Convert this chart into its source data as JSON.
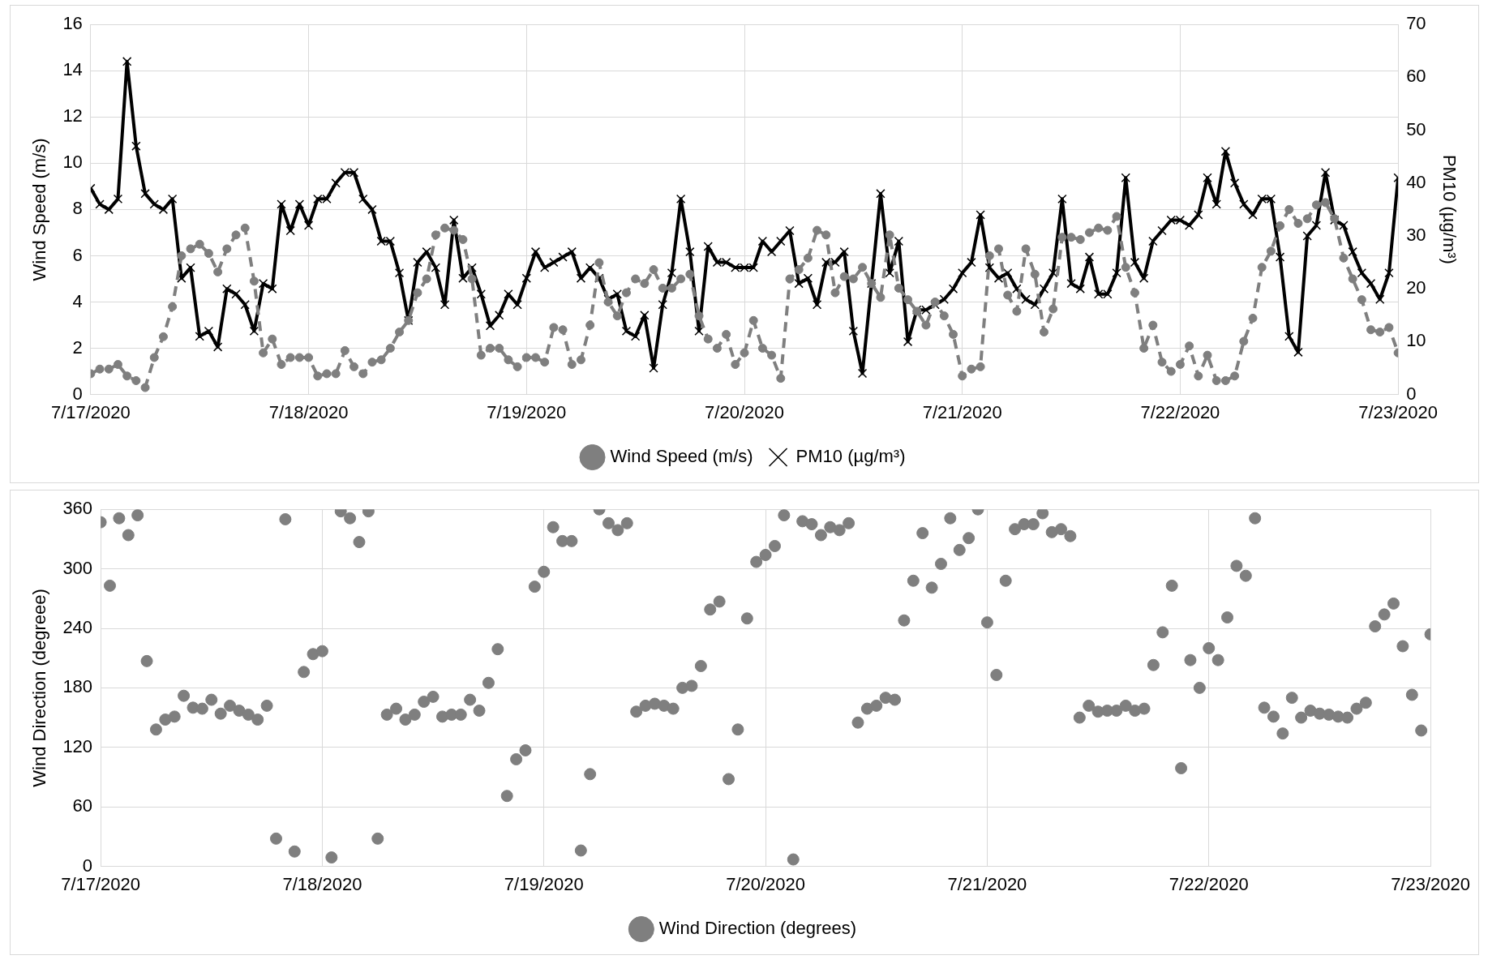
{
  "chart_data": [
    {
      "type": "line",
      "x": [
        "2020-07-17T00:00",
        "2020-07-17T01:00",
        "2020-07-17T02:00",
        "2020-07-17T03:00",
        "2020-07-17T04:00",
        "2020-07-17T05:00",
        "2020-07-17T06:00",
        "2020-07-17T07:00",
        "2020-07-17T08:00",
        "2020-07-17T09:00",
        "2020-07-17T10:00",
        "2020-07-17T11:00",
        "2020-07-17T12:00",
        "2020-07-17T13:00",
        "2020-07-17T14:00",
        "2020-07-17T15:00",
        "2020-07-17T16:00",
        "2020-07-17T17:00",
        "2020-07-17T18:00",
        "2020-07-17T19:00",
        "2020-07-17T20:00",
        "2020-07-17T21:00",
        "2020-07-17T22:00",
        "2020-07-17T23:00",
        "2020-07-18T00:00",
        "2020-07-18T01:00",
        "2020-07-18T02:00",
        "2020-07-18T03:00",
        "2020-07-18T04:00",
        "2020-07-18T05:00",
        "2020-07-18T06:00",
        "2020-07-18T07:00",
        "2020-07-18T08:00",
        "2020-07-18T09:00",
        "2020-07-18T10:00",
        "2020-07-18T11:00",
        "2020-07-18T12:00",
        "2020-07-18T13:00",
        "2020-07-18T14:00",
        "2020-07-18T15:00",
        "2020-07-18T16:00",
        "2020-07-18T17:00",
        "2020-07-18T18:00",
        "2020-07-18T19:00",
        "2020-07-18T20:00",
        "2020-07-18T21:00",
        "2020-07-18T22:00",
        "2020-07-18T23:00",
        "2020-07-19T00:00",
        "2020-07-19T01:00",
        "2020-07-19T02:00",
        "2020-07-19T03:00",
        "2020-07-19T04:00",
        "2020-07-19T05:00",
        "2020-07-19T06:00",
        "2020-07-19T07:00",
        "2020-07-19T08:00",
        "2020-07-19T09:00",
        "2020-07-19T10:00",
        "2020-07-19T11:00",
        "2020-07-19T12:00",
        "2020-07-19T13:00",
        "2020-07-19T14:00",
        "2020-07-19T15:00",
        "2020-07-19T16:00",
        "2020-07-19T17:00",
        "2020-07-19T18:00",
        "2020-07-19T19:00",
        "2020-07-19T20:00",
        "2020-07-19T21:00",
        "2020-07-19T22:00",
        "2020-07-19T23:00",
        "2020-07-20T00:00",
        "2020-07-20T01:00",
        "2020-07-20T02:00",
        "2020-07-20T03:00",
        "2020-07-20T04:00",
        "2020-07-20T05:00",
        "2020-07-20T06:00",
        "2020-07-20T07:00",
        "2020-07-20T08:00",
        "2020-07-20T09:00",
        "2020-07-20T10:00",
        "2020-07-20T11:00",
        "2020-07-20T12:00",
        "2020-07-20T13:00",
        "2020-07-20T14:00",
        "2020-07-20T15:00",
        "2020-07-20T16:00",
        "2020-07-20T17:00",
        "2020-07-20T18:00",
        "2020-07-20T19:00",
        "2020-07-20T20:00",
        "2020-07-20T21:00",
        "2020-07-20T22:00",
        "2020-07-20T23:00",
        "2020-07-21T00:00",
        "2020-07-21T01:00",
        "2020-07-21T02:00",
        "2020-07-21T03:00",
        "2020-07-21T04:00",
        "2020-07-21T05:00",
        "2020-07-21T06:00",
        "2020-07-21T07:00",
        "2020-07-21T08:00",
        "2020-07-21T09:00",
        "2020-07-21T10:00",
        "2020-07-21T11:00",
        "2020-07-21T12:00",
        "2020-07-21T13:00",
        "2020-07-21T14:00",
        "2020-07-21T15:00",
        "2020-07-21T16:00",
        "2020-07-21T17:00",
        "2020-07-21T18:00",
        "2020-07-21T19:00",
        "2020-07-21T20:00",
        "2020-07-21T21:00",
        "2020-07-21T22:00",
        "2020-07-21T23:00",
        "2020-07-22T00:00",
        "2020-07-22T01:00",
        "2020-07-22T02:00",
        "2020-07-22T03:00",
        "2020-07-22T04:00",
        "2020-07-22T05:00",
        "2020-07-22T06:00",
        "2020-07-22T07:00",
        "2020-07-22T08:00",
        "2020-07-22T09:00",
        "2020-07-22T10:00",
        "2020-07-22T11:00",
        "2020-07-22T12:00",
        "2020-07-22T13:00",
        "2020-07-22T14:00",
        "2020-07-22T15:00",
        "2020-07-22T16:00",
        "2020-07-22T17:00",
        "2020-07-22T18:00",
        "2020-07-22T19:00",
        "2020-07-22T20:00",
        "2020-07-22T21:00",
        "2020-07-22T22:00",
        "2020-07-22T23:00",
        "2020-07-23T00:00"
      ],
      "xlim": [
        "2020-07-17",
        "2020-07-23"
      ],
      "xticks": [
        {
          "value": "2020-07-17",
          "label": "7/17/2020"
        },
        {
          "value": "2020-07-18",
          "label": "7/18/2020"
        },
        {
          "value": "2020-07-19",
          "label": "7/19/2020"
        },
        {
          "value": "2020-07-20",
          "label": "7/20/2020"
        },
        {
          "value": "2020-07-21",
          "label": "7/21/2020"
        },
        {
          "value": "2020-07-22",
          "label": "7/22/2020"
        },
        {
          "value": "2020-07-23",
          "label": "7/23/2020"
        }
      ],
      "ylabel": "Wind Speed (m/s)",
      "ylim": [
        0,
        16
      ],
      "yticks": [
        0,
        2,
        4,
        6,
        8,
        10,
        12,
        14,
        16
      ],
      "y2label": "PM10 (µg/m³)",
      "y2lim": [
        0,
        70
      ],
      "y2ticks": [
        0,
        10,
        20,
        30,
        40,
        50,
        60,
        70
      ],
      "grid": true,
      "legend": "bottom",
      "series": [
        {
          "name": "Wind Speed (m/s)",
          "color": "#7f7f7f",
          "marker": "circle",
          "line_style": "dashed",
          "values": [
            0.9,
            1.1,
            1.1,
            1.3,
            0.8,
            0.6,
            0.3,
            1.6,
            2.5,
            3.8,
            6.0,
            6.3,
            6.5,
            6.1,
            5.3,
            6.3,
            6.9,
            7.2,
            4.9,
            1.8,
            2.4,
            1.3,
            1.6,
            1.6,
            1.6,
            0.8,
            0.9,
            0.9,
            1.9,
            1.2,
            0.9,
            1.4,
            1.5,
            2.0,
            2.7,
            3.2,
            4.4,
            5.0,
            6.9,
            7.2,
            7.1,
            6.7,
            5.0,
            1.7,
            2.0,
            2.0,
            1.5,
            1.2,
            1.6,
            1.6,
            1.4,
            2.9,
            2.8,
            1.3,
            1.5,
            3.0,
            5.7,
            4.0,
            3.4,
            4.4,
            5.0,
            4.8,
            5.4,
            4.6,
            4.6,
            5.0,
            5.2,
            3.4,
            2.4,
            2.0,
            2.6,
            1.3,
            1.8,
            3.2,
            2.0,
            1.7,
            0.7,
            5.0,
            5.4,
            5.9,
            7.1,
            6.9,
            4.4,
            5.1,
            5.0,
            5.5,
            4.8,
            4.2,
            6.9,
            4.6,
            4.1,
            3.6,
            3.0,
            4.0,
            3.4,
            2.6,
            0.8,
            1.1,
            1.2,
            6.0,
            6.3,
            4.3,
            3.6,
            6.3,
            5.2,
            2.7,
            3.7,
            6.8,
            6.8,
            6.7,
            7.0,
            7.2,
            7.1,
            7.7,
            5.5,
            4.4,
            2.0,
            3.0,
            1.4,
            1.0,
            1.3,
            2.1,
            0.8,
            1.7,
            0.6,
            0.6,
            0.8,
            2.3,
            3.3,
            5.5,
            6.2,
            7.3,
            8.0,
            7.4,
            7.6,
            8.2,
            8.3,
            7.6,
            5.9,
            5.0,
            4.1,
            2.8,
            2.7,
            2.9,
            1.8
          ]
        },
        {
          "name": "PM10 (µg/m³)",
          "color": "#000000",
          "marker": "cross",
          "line_style": "solid",
          "axis": "y2",
          "values": [
            39,
            36,
            35,
            37,
            63,
            47,
            38,
            36,
            35,
            37,
            22,
            24,
            11,
            12,
            9,
            20,
            19,
            17,
            12,
            21,
            20,
            36,
            31,
            36,
            32,
            37,
            37,
            40,
            42,
            42,
            37,
            35,
            29,
            29,
            23,
            14,
            25,
            27,
            24,
            17,
            33,
            22,
            24,
            19,
            13,
            15,
            19,
            17,
            22,
            27,
            24,
            25,
            26,
            27,
            22,
            24,
            22,
            18,
            19,
            12,
            11,
            15,
            5,
            17,
            23,
            37,
            27,
            12,
            28,
            25,
            25,
            24,
            24,
            24,
            29,
            27,
            29,
            31,
            21,
            22,
            17,
            25,
            25,
            27,
            12,
            4,
            21,
            38,
            23,
            29,
            10,
            16,
            16,
            17,
            18,
            20,
            23,
            25,
            34,
            24,
            22,
            23,
            20,
            18,
            17,
            20,
            23,
            37,
            21,
            20,
            26,
            19,
            19,
            23,
            41,
            25,
            22,
            29,
            31,
            33,
            33,
            32,
            34,
            41,
            36,
            46,
            40,
            36,
            34,
            37,
            37,
            26,
            11,
            8,
            30,
            32,
            42,
            33,
            32,
            27,
            23,
            21,
            18,
            23,
            41
          ]
        }
      ]
    },
    {
      "type": "scatter",
      "x": [
        "2020-07-17T00:00",
        "2020-07-17T01:00",
        "2020-07-17T02:00",
        "2020-07-17T03:00",
        "2020-07-17T04:00",
        "2020-07-17T05:00",
        "2020-07-17T06:00",
        "2020-07-17T07:00",
        "2020-07-17T08:00",
        "2020-07-17T09:00",
        "2020-07-17T10:00",
        "2020-07-17T11:00",
        "2020-07-17T12:00",
        "2020-07-17T13:00",
        "2020-07-17T14:00",
        "2020-07-17T15:00",
        "2020-07-17T16:00",
        "2020-07-17T17:00",
        "2020-07-17T18:00",
        "2020-07-17T19:00",
        "2020-07-17T20:00",
        "2020-07-17T21:00",
        "2020-07-17T22:00",
        "2020-07-17T23:00",
        "2020-07-18T00:00",
        "2020-07-18T01:00",
        "2020-07-18T02:00",
        "2020-07-18T03:00",
        "2020-07-18T04:00",
        "2020-07-18T05:00",
        "2020-07-18T06:00",
        "2020-07-18T07:00",
        "2020-07-18T08:00",
        "2020-07-18T09:00",
        "2020-07-18T10:00",
        "2020-07-18T11:00",
        "2020-07-18T12:00",
        "2020-07-18T13:00",
        "2020-07-18T14:00",
        "2020-07-18T15:00",
        "2020-07-18T16:00",
        "2020-07-18T17:00",
        "2020-07-18T18:00",
        "2020-07-18T19:00",
        "2020-07-18T20:00",
        "2020-07-18T21:00",
        "2020-07-18T22:00",
        "2020-07-18T23:00",
        "2020-07-19T00:00",
        "2020-07-19T01:00",
        "2020-07-19T02:00",
        "2020-07-19T03:00",
        "2020-07-19T04:00",
        "2020-07-19T05:00",
        "2020-07-19T06:00",
        "2020-07-19T07:00",
        "2020-07-19T08:00",
        "2020-07-19T09:00",
        "2020-07-19T10:00",
        "2020-07-19T11:00",
        "2020-07-19T12:00",
        "2020-07-19T13:00",
        "2020-07-19T14:00",
        "2020-07-19T15:00",
        "2020-07-19T16:00",
        "2020-07-19T17:00",
        "2020-07-19T18:00",
        "2020-07-19T19:00",
        "2020-07-19T20:00",
        "2020-07-19T21:00",
        "2020-07-19T22:00",
        "2020-07-19T23:00",
        "2020-07-20T00:00",
        "2020-07-20T01:00",
        "2020-07-20T02:00",
        "2020-07-20T03:00",
        "2020-07-20T04:00",
        "2020-07-20T05:00",
        "2020-07-20T06:00",
        "2020-07-20T07:00",
        "2020-07-20T08:00",
        "2020-07-20T09:00",
        "2020-07-20T10:00",
        "2020-07-20T11:00",
        "2020-07-20T12:00",
        "2020-07-20T13:00",
        "2020-07-20T14:00",
        "2020-07-20T15:00",
        "2020-07-20T16:00",
        "2020-07-20T17:00",
        "2020-07-20T18:00",
        "2020-07-20T19:00",
        "2020-07-20T20:00",
        "2020-07-20T21:00",
        "2020-07-20T22:00",
        "2020-07-20T23:00",
        "2020-07-21T00:00",
        "2020-07-21T01:00",
        "2020-07-21T02:00",
        "2020-07-21T03:00",
        "2020-07-21T04:00",
        "2020-07-21T05:00",
        "2020-07-21T06:00",
        "2020-07-21T07:00",
        "2020-07-21T08:00",
        "2020-07-21T09:00",
        "2020-07-21T10:00",
        "2020-07-21T11:00",
        "2020-07-21T12:00",
        "2020-07-21T13:00",
        "2020-07-21T14:00",
        "2020-07-21T15:00",
        "2020-07-21T16:00",
        "2020-07-21T17:00",
        "2020-07-21T18:00",
        "2020-07-21T19:00",
        "2020-07-21T20:00",
        "2020-07-21T21:00",
        "2020-07-21T22:00",
        "2020-07-21T23:00",
        "2020-07-22T00:00",
        "2020-07-22T01:00",
        "2020-07-22T02:00",
        "2020-07-22T03:00",
        "2020-07-22T04:00",
        "2020-07-22T05:00",
        "2020-07-22T06:00",
        "2020-07-22T07:00",
        "2020-07-22T08:00",
        "2020-07-22T09:00",
        "2020-07-22T10:00",
        "2020-07-22T11:00",
        "2020-07-22T12:00",
        "2020-07-22T13:00",
        "2020-07-22T14:00",
        "2020-07-22T15:00",
        "2020-07-22T16:00",
        "2020-07-22T17:00",
        "2020-07-22T18:00",
        "2020-07-22T19:00",
        "2020-07-22T20:00",
        "2020-07-22T21:00",
        "2020-07-22T22:00",
        "2020-07-22T23:00",
        "2020-07-23T00:00"
      ],
      "xlim": [
        "2020-07-17",
        "2020-07-23"
      ],
      "xticks": [
        {
          "value": "2020-07-17",
          "label": "7/17/2020"
        },
        {
          "value": "2020-07-18",
          "label": "7/18/2020"
        },
        {
          "value": "2020-07-19",
          "label": "7/19/2020"
        },
        {
          "value": "2020-07-20",
          "label": "7/20/2020"
        },
        {
          "value": "2020-07-21",
          "label": "7/21/2020"
        },
        {
          "value": "2020-07-22",
          "label": "7/22/2020"
        },
        {
          "value": "2020-07-23",
          "label": "7/23/2020"
        }
      ],
      "ylabel": "Wind Direction (degreee)",
      "ylim": [
        0,
        360
      ],
      "yticks": [
        0,
        60,
        120,
        180,
        240,
        300,
        360
      ],
      "grid": true,
      "legend": "bottom",
      "marker": "circle",
      "series": [
        {
          "name": "Wind Direction (degrees)",
          "color": "#7f7f7f",
          "values": [
            347,
            283,
            351,
            334,
            354,
            207,
            138,
            148,
            151,
            172,
            160,
            159,
            168,
            154,
            162,
            157,
            153,
            148,
            162,
            28,
            350,
            15,
            196,
            214,
            217,
            9,
            358,
            351,
            327,
            358,
            28,
            153,
            159,
            148,
            153,
            166,
            171,
            151,
            153,
            153,
            168,
            157,
            185,
            219,
            71,
            108,
            117,
            282,
            297,
            342,
            328,
            328,
            16,
            93,
            360,
            346,
            339,
            346,
            156,
            162,
            164,
            162,
            159,
            180,
            182,
            202,
            259,
            267,
            88,
            138,
            250,
            307,
            314,
            323,
            354,
            7,
            348,
            345,
            334,
            342,
            339,
            346,
            145,
            159,
            162,
            170,
            168,
            248,
            288,
            336,
            281,
            305,
            351,
            319,
            331,
            360,
            246,
            193,
            288,
            340,
            345,
            345,
            356,
            337,
            340,
            333,
            150,
            162,
            156,
            157,
            157,
            162,
            157,
            159,
            203,
            236,
            283,
            99,
            208,
            180,
            220,
            208,
            251,
            303,
            293,
            351,
            160,
            151,
            134,
            170,
            150,
            157,
            154,
            153,
            151,
            150,
            159,
            165,
            242,
            254,
            265,
            222,
            173,
            137,
            234
          ]
        }
      ]
    }
  ]
}
